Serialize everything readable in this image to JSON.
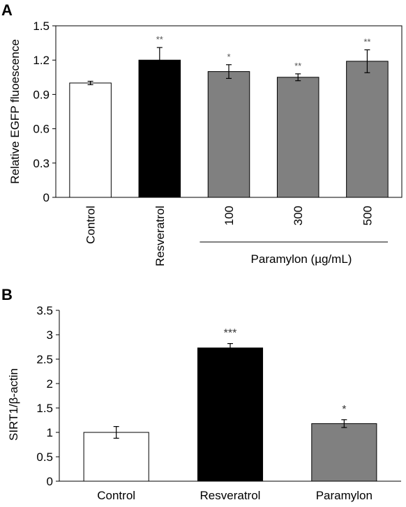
{
  "panels": {
    "a": {
      "label": "A"
    },
    "b": {
      "label": "B"
    }
  },
  "chart_data": [
    {
      "type": "bar",
      "panel": "A",
      "title": "",
      "xlabel": "",
      "ylabel": "Relative EGFP fluoescence",
      "ylim": [
        0,
        1.5
      ],
      "yticks": [
        "0",
        "0.3",
        "0.6",
        "0.9",
        "1.2",
        "1.5"
      ],
      "categories": [
        "Control",
        "Resveratrol",
        "100",
        "300",
        "500"
      ],
      "values": [
        1.0,
        1.2,
        1.1,
        1.05,
        1.19
      ],
      "errors": [
        0.015,
        0.11,
        0.06,
        0.03,
        0.1
      ],
      "significance": [
        "",
        "**",
        "*",
        "**",
        "**"
      ],
      "colors": [
        "#ffffff",
        "#000000",
        "#808080",
        "#808080",
        "#808080"
      ],
      "group_label": "Paramylon (µg/mL)",
      "grid": false
    },
    {
      "type": "bar",
      "panel": "B",
      "title": "",
      "xlabel": "",
      "ylabel": "SIRT1/β-actin",
      "ylim": [
        0,
        3.5
      ],
      "yticks": [
        "0",
        "0.5",
        "1",
        "1.5",
        "2",
        "2.5",
        "3",
        "3.5"
      ],
      "categories": [
        "Control",
        "Resveratrol",
        "Paramylon"
      ],
      "values": [
        1.0,
        2.73,
        1.18
      ],
      "errors": [
        0.12,
        0.09,
        0.08
      ],
      "significance": [
        "",
        "***",
        "*"
      ],
      "colors": [
        "#ffffff",
        "#000000",
        "#808080"
      ],
      "grid": false
    }
  ]
}
